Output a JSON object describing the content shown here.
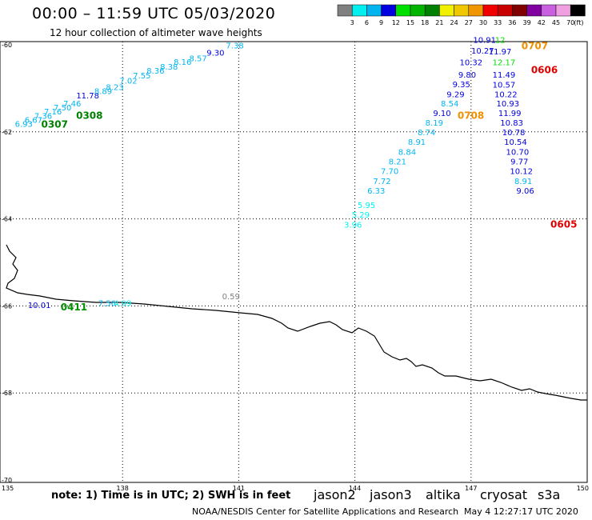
{
  "header": {
    "title": "00:00 – 11:59 UTC 05/03/2020",
    "subtitle": "12 hour collection of altimeter wave heights"
  },
  "legend": {
    "unit": "(ft)",
    "bins": [
      {
        "label": "3",
        "color": "#808080"
      },
      {
        "label": "6",
        "color": "#00f0f0"
      },
      {
        "label": "9",
        "color": "#00b4f0"
      },
      {
        "label": "12",
        "color": "#0000e0"
      },
      {
        "label": "15",
        "color": "#00e000"
      },
      {
        "label": "18",
        "color": "#00b400"
      },
      {
        "label": "21",
        "color": "#008000"
      },
      {
        "label": "24",
        "color": "#f0f000"
      },
      {
        "label": "27",
        "color": "#f0c800"
      },
      {
        "label": "30",
        "color": "#f09600"
      },
      {
        "label": "33",
        "color": "#f00000"
      },
      {
        "label": "36",
        "color": "#c80000"
      },
      {
        "label": "39",
        "color": "#800000"
      },
      {
        "label": "42",
        "color": "#8000a0"
      },
      {
        "label": "45",
        "color": "#c860e0"
      },
      {
        "label": "70",
        "color": "#f0a0e0"
      },
      {
        "label": "",
        "color": "#000000"
      }
    ]
  },
  "axes": {
    "lon_ticks": [
      "135",
      "138",
      "141",
      "144",
      "147",
      "150"
    ],
    "lat_ticks": [
      "-60",
      "-62",
      "-64",
      "-66",
      "-68",
      "-70"
    ]
  },
  "footer": {
    "note": "note:  1) Time is in UTC;  2) SWH is in feet",
    "satellites": [
      {
        "name": "jason2",
        "color": "#0000d0"
      },
      {
        "name": "jason3",
        "color": "#009000"
      },
      {
        "name": "altika",
        "color": "#f09000"
      },
      {
        "name": "cryosat",
        "color": "#d00000"
      },
      {
        "name": "s3a",
        "color": "#900000"
      }
    ],
    "credit": "NOAA/NESDIS Center for Satellite Applications and Research",
    "generated": "May  4 12:27:17 UTC 2020"
  },
  "tracks": [
    {
      "id": "0307-0308",
      "time_labels": [
        {
          "text": "0307",
          "color": "#008000",
          "lon": 135.9,
          "lat": -61.9
        },
        {
          "text": "0308",
          "color": "#008000",
          "lon": 136.8,
          "lat": -61.7
        }
      ],
      "points": [
        {
          "v": "6.93",
          "c": "#00b4f0",
          "lon": 135.45,
          "lat": -61.88
        },
        {
          "v": "6.67",
          "c": "#00b4f0",
          "lon": 135.7,
          "lat": -61.79
        },
        {
          "v": "7.36",
          "c": "#00b4f0",
          "lon": 135.95,
          "lat": -61.7
        },
        {
          "v": "7.16",
          "c": "#00b4f0",
          "lon": 136.2,
          "lat": -61.6
        },
        {
          "v": "7.50",
          "c": "#00b4f0",
          "lon": 136.45,
          "lat": -61.51
        },
        {
          "v": "7.46",
          "c": "#00b4f0",
          "lon": 136.7,
          "lat": -61.42
        },
        {
          "v": "11.78",
          "c": "#0000e0",
          "lon": 137.1,
          "lat": -61.23
        },
        {
          "v": "8.89",
          "c": "#00b4f0",
          "lon": 137.5,
          "lat": -61.13
        },
        {
          "v": "8.23",
          "c": "#00b4f0",
          "lon": 137.8,
          "lat": -61.04
        },
        {
          "v": "7.02",
          "c": "#00b4f0",
          "lon": 138.15,
          "lat": -60.89
        },
        {
          "v": "7.55",
          "c": "#00b4f0",
          "lon": 138.5,
          "lat": -60.77
        },
        {
          "v": "8.36",
          "c": "#00b4f0",
          "lon": 138.85,
          "lat": -60.66
        },
        {
          "v": "8.38",
          "c": "#00b4f0",
          "lon": 139.2,
          "lat": -60.57
        },
        {
          "v": "8.16",
          "c": "#00b4f0",
          "lon": 139.55,
          "lat": -60.46
        },
        {
          "v": "8.57",
          "c": "#00b4f0",
          "lon": 139.95,
          "lat": -60.38
        },
        {
          "v": "9.30",
          "c": "#0000e0",
          "lon": 140.4,
          "lat": -60.25
        },
        {
          "v": "7.38",
          "c": "#00b4f0",
          "lon": 140.9,
          "lat": -60.08
        }
      ]
    },
    {
      "id": "0605-0606",
      "time_labels": [
        {
          "text": "0606",
          "color": "#e00000",
          "lon": 148.55,
          "lat": -60.65
        },
        {
          "text": "0605",
          "color": "#e00000",
          "lon": 149.05,
          "lat": -64.2
        }
      ],
      "points": [
        {
          "v": "10.91",
          "c": "#0000e0",
          "lon": 147.35,
          "lat": -59.95
        },
        {
          "v": "11.97",
          "c": "#0000e0",
          "lon": 147.75,
          "lat": -60.22
        },
        {
          "v": "12.17",
          "c": "#00e000",
          "lon": 147.85,
          "lat": -60.47
        },
        {
          "v": "11.49",
          "c": "#0000e0",
          "lon": 147.85,
          "lat": -60.75
        },
        {
          "v": "10.57",
          "c": "#0000e0",
          "lon": 147.85,
          "lat": -60.98
        },
        {
          "v": "10.22",
          "c": "#0000e0",
          "lon": 147.9,
          "lat": -61.2
        },
        {
          "v": "10.93",
          "c": "#0000e0",
          "lon": 147.95,
          "lat": -61.42
        },
        {
          "v": "11.99",
          "c": "#0000e0",
          "lon": 148.0,
          "lat": -61.64
        },
        {
          "v": "10.83",
          "c": "#0000e0",
          "lon": 148.05,
          "lat": -61.86
        },
        {
          "v": "10.78",
          "c": "#0000e0",
          "lon": 148.1,
          "lat": -62.08
        },
        {
          "v": "10.54",
          "c": "#0000e0",
          "lon": 148.15,
          "lat": -62.3
        },
        {
          "v": "10.70",
          "c": "#0000e0",
          "lon": 148.2,
          "lat": -62.53
        },
        {
          "v": "9.77",
          "c": "#0000e0",
          "lon": 148.25,
          "lat": -62.75
        },
        {
          "v": "10.12",
          "c": "#0000e0",
          "lon": 148.3,
          "lat": -62.97
        },
        {
          "v": "8.91",
          "c": "#00b4f0",
          "lon": 148.35,
          "lat": -63.2
        },
        {
          "v": "9.06",
          "c": "#0000e0",
          "lon": 148.4,
          "lat": -63.42
        }
      ]
    },
    {
      "id": "0707-0708",
      "time_labels": [
        {
          "text": "0707",
          "color": "#f09000",
          "lon": 148.3,
          "lat": -60.1
        },
        {
          "text": "0708",
          "color": "#f09000",
          "lon": 146.65,
          "lat": -61.7
        }
      ],
      "points": [
        {
          "v": "12",
          "c": "#00e000",
          "lon": 147.75,
          "lat": -59.95
        },
        {
          "v": "10.27",
          "c": "#0000e0",
          "lon": 147.3,
          "lat": -60.2
        },
        {
          "v": "10.32",
          "c": "#0000e0",
          "lon": 147.0,
          "lat": -60.47
        },
        {
          "v": "9.80",
          "c": "#0000e0",
          "lon": 146.9,
          "lat": -60.75
        },
        {
          "v": "9.35",
          "c": "#0000e0",
          "lon": 146.75,
          "lat": -60.97
        },
        {
          "v": "9.29",
          "c": "#0000e0",
          "lon": 146.6,
          "lat": -61.2
        },
        {
          "v": "8.54",
          "c": "#00b4f0",
          "lon": 146.45,
          "lat": -61.42
        },
        {
          "v": "9.10",
          "c": "#0000e0",
          "lon": 146.25,
          "lat": -61.64
        },
        {
          "v": "8.19",
          "c": "#00b4f0",
          "lon": 146.05,
          "lat": -61.86
        },
        {
          "v": "8.74",
          "c": "#00b4f0",
          "lon": 145.85,
          "lat": -62.08
        },
        {
          "v": "8.91",
          "c": "#00b4f0",
          "lon": 145.6,
          "lat": -62.3
        },
        {
          "v": "8.84",
          "c": "#00b4f0",
          "lon": 145.35,
          "lat": -62.53
        },
        {
          "v": "8.21",
          "c": "#00b4f0",
          "lon": 145.1,
          "lat": -62.75
        },
        {
          "v": "7.70",
          "c": "#00b4f0",
          "lon": 144.9,
          "lat": -62.97
        },
        {
          "v": "7.72",
          "c": "#00b4f0",
          "lon": 144.7,
          "lat": -63.2
        },
        {
          "v": "6.33",
          "c": "#00b4f0",
          "lon": 144.55,
          "lat": -63.42
        },
        {
          "v": "5.95",
          "c": "#00f0f0",
          "lon": 144.3,
          "lat": -63.75
        },
        {
          "v": "5.29",
          "c": "#00f0f0",
          "lon": 144.15,
          "lat": -63.97
        },
        {
          "v": "3.96",
          "c": "#00f0f0",
          "lon": 143.95,
          "lat": -64.2
        }
      ]
    },
    {
      "id": "coastal",
      "time_labels": [
        {
          "text": "0411",
          "color": "#009000",
          "lon": 136.4,
          "lat": -66.1
        }
      ],
      "points": [
        {
          "v": "10.01",
          "c": "#0000e0",
          "lon": 135.85,
          "lat": -66.05
        },
        {
          "v": "7.56",
          "c": "#00b4f0",
          "lon": 137.6,
          "lat": -66.0
        },
        {
          "v": "4.99",
          "c": "#00f0f0",
          "lon": 138.0,
          "lat": -66.0
        },
        {
          "v": "0.59",
          "c": "#808080",
          "lon": 140.8,
          "lat": -65.85
        }
      ]
    }
  ]
}
